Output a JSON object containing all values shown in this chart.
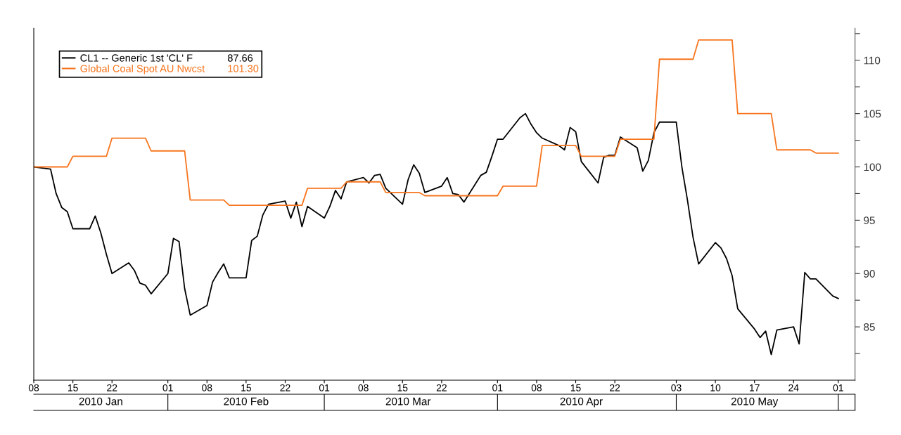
{
  "chart_data": {
    "type": "line",
    "xlim": [
      "2010-01-08",
      "2010-06-04"
    ],
    "xticks": [
      {
        "value": "2010-01-08",
        "label": "08"
      },
      {
        "value": "2010-01-15",
        "label": "15"
      },
      {
        "value": "2010-01-22",
        "label": "22"
      },
      {
        "value": "2010-02-01",
        "label": "01"
      },
      {
        "value": "2010-02-08",
        "label": "08"
      },
      {
        "value": "2010-02-15",
        "label": "15"
      },
      {
        "value": "2010-02-22",
        "label": "22"
      },
      {
        "value": "2010-03-01",
        "label": "01"
      },
      {
        "value": "2010-03-08",
        "label": "08"
      },
      {
        "value": "2010-03-15",
        "label": "15"
      },
      {
        "value": "2010-03-22",
        "label": "22"
      },
      {
        "value": "2010-04-01",
        "label": "01"
      },
      {
        "value": "2010-04-08",
        "label": "08"
      },
      {
        "value": "2010-04-15",
        "label": "15"
      },
      {
        "value": "2010-04-22",
        "label": "22"
      },
      {
        "value": "2010-05-03",
        "label": "03"
      },
      {
        "value": "2010-05-10",
        "label": "10"
      },
      {
        "value": "2010-05-17",
        "label": "17"
      },
      {
        "value": "2010-05-24",
        "label": "24"
      },
      {
        "value": "2010-06-01",
        "label": "01"
      }
    ],
    "x2lim": [
      "2010-01-08",
      "2010-06-04"
    ],
    "x2ticks": [
      {
        "value": "2010-01-20",
        "label": "2010 Jan"
      },
      {
        "value": "2010-02-15",
        "label": "2010 Feb"
      },
      {
        "value": "2010-03-16",
        "label": "2010 Mar"
      },
      {
        "value": "2010-04-16",
        "label": "2010 Apr"
      },
      {
        "value": "2010-05-17",
        "label": "2010 May"
      }
    ],
    "ylim": [
      80,
      113
    ],
    "yticks": [
      {
        "value": 82.5,
        "label": null
      },
      85,
      {
        "value": 87.5,
        "label": null
      },
      90,
      {
        "value": 92.5,
        "label": null
      },
      95,
      {
        "value": 97.5,
        "label": null
      },
      100,
      {
        "value": 102.5,
        "label": null
      },
      105,
      {
        "value": 107.5,
        "label": null
      },
      110,
      {
        "value": 112.5,
        "label": null
      }
    ],
    "legend": "top left",
    "annotations": [
      "87.66",
      "101.30"
    ],
    "grid": false,
    "marker": "none",
    "line_style": "solid",
    "series": [
      {
        "name": "CL1 -- Generic 1st 'CL' F",
        "color": "#000000",
        "x": [
          "2010-01-08",
          "2010-01-11",
          "2010-01-12",
          "2010-01-13",
          "2010-01-14",
          "2010-01-15",
          "2010-01-18",
          "2010-01-19",
          "2010-01-20",
          "2010-01-21",
          "2010-01-22",
          "2010-01-25",
          "2010-01-26",
          "2010-01-27",
          "2010-01-28",
          "2010-01-29",
          "2010-02-01",
          "2010-02-02",
          "2010-02-03",
          "2010-02-04",
          "2010-02-05",
          "2010-02-08",
          "2010-02-09",
          "2010-02-10",
          "2010-02-11",
          "2010-02-12",
          "2010-02-15",
          "2010-02-16",
          "2010-02-17",
          "2010-02-18",
          "2010-02-19",
          "2010-02-22",
          "2010-02-23",
          "2010-02-24",
          "2010-02-25",
          "2010-02-26",
          "2010-03-01",
          "2010-03-02",
          "2010-03-03",
          "2010-03-04",
          "2010-03-05",
          "2010-03-08",
          "2010-03-09",
          "2010-03-10",
          "2010-03-11",
          "2010-03-12",
          "2010-03-15",
          "2010-03-16",
          "2010-03-17",
          "2010-03-18",
          "2010-03-19",
          "2010-03-22",
          "2010-03-23",
          "2010-03-24",
          "2010-03-25",
          "2010-03-26",
          "2010-03-29",
          "2010-03-30",
          "2010-03-31",
          "2010-04-01",
          "2010-04-02",
          "2010-04-05",
          "2010-04-06",
          "2010-04-07",
          "2010-04-08",
          "2010-04-09",
          "2010-04-12",
          "2010-04-13",
          "2010-04-14",
          "2010-04-15",
          "2010-04-16",
          "2010-04-19",
          "2010-04-20",
          "2010-04-21",
          "2010-04-22",
          "2010-04-23",
          "2010-04-26",
          "2010-04-27",
          "2010-04-28",
          "2010-04-29",
          "2010-04-30",
          "2010-05-03",
          "2010-05-04",
          "2010-05-05",
          "2010-05-06",
          "2010-05-07",
          "2010-05-10",
          "2010-05-11",
          "2010-05-12",
          "2010-05-13",
          "2010-05-14",
          "2010-05-17",
          "2010-05-18",
          "2010-05-19",
          "2010-05-20",
          "2010-05-21",
          "2010-05-24",
          "2010-05-25",
          "2010-05-26",
          "2010-05-27",
          "2010-05-28",
          "2010-05-31",
          "2010-06-01"
        ],
        "values": [
          100.0,
          99.8,
          97.5,
          96.2,
          95.8,
          94.2,
          94.2,
          95.4,
          93.8,
          91.8,
          90.0,
          91.0,
          90.3,
          89.1,
          88.9,
          88.1,
          90.0,
          93.3,
          93.0,
          88.6,
          86.1,
          87.0,
          89.2,
          90.1,
          90.9,
          89.6,
          89.6,
          93.1,
          93.5,
          95.5,
          96.5,
          96.8,
          95.2,
          96.7,
          94.4,
          96.3,
          95.2,
          96.3,
          97.8,
          97.0,
          98.6,
          99.0,
          98.5,
          99.2,
          99.3,
          98.0,
          96.5,
          98.8,
          100.2,
          99.4,
          97.6,
          98.2,
          99.0,
          97.5,
          97.4,
          96.7,
          99.2,
          99.5,
          101.0,
          102.6,
          102.6,
          104.6,
          105.0,
          104.0,
          103.2,
          102.7,
          102.0,
          101.6,
          103.7,
          103.3,
          100.5,
          98.5,
          100.9,
          101.1,
          101.1,
          102.8,
          101.8,
          99.6,
          100.6,
          103.2,
          104.2,
          104.2,
          100.0,
          96.9,
          93.4,
          90.9,
          92.9,
          92.4,
          91.4,
          89.8,
          86.7,
          84.8,
          84.0,
          84.6,
          82.4,
          84.7,
          85.0,
          83.4,
          90.1,
          89.5,
          89.5,
          87.9,
          87.66
        ]
      },
      {
        "name": "Global Coal Spot AU Nwcst",
        "color": "#f7751e",
        "x": [
          "2010-01-08",
          "2010-01-14",
          "2010-01-15",
          "2010-01-21",
          "2010-01-22",
          "2010-01-28",
          "2010-01-29",
          "2010-02-04",
          "2010-02-05",
          "2010-02-11",
          "2010-02-12",
          "2010-02-25",
          "2010-02-26",
          "2010-03-04",
          "2010-03-05",
          "2010-03-11",
          "2010-03-12",
          "2010-03-18",
          "2010-03-19",
          "2010-04-01",
          "2010-04-02",
          "2010-04-08",
          "2010-04-09",
          "2010-04-15",
          "2010-04-16",
          "2010-04-22",
          "2010-04-23",
          "2010-04-29",
          "2010-04-30",
          "2010-05-06",
          "2010-05-07",
          "2010-05-13",
          "2010-05-14",
          "2010-05-20",
          "2010-05-21",
          "2010-05-27",
          "2010-05-28",
          "2010-06-01"
        ],
        "values": [
          100.0,
          100.0,
          101.0,
          101.0,
          102.7,
          102.7,
          101.5,
          101.5,
          96.9,
          96.9,
          96.4,
          96.4,
          98.0,
          98.0,
          98.6,
          98.6,
          97.6,
          97.6,
          97.3,
          97.3,
          98.2,
          98.2,
          102.0,
          102.0,
          101.0,
          101.0,
          102.6,
          102.6,
          110.1,
          110.1,
          111.9,
          111.9,
          105.0,
          105.0,
          101.6,
          101.6,
          101.3,
          101.3
        ]
      }
    ]
  }
}
